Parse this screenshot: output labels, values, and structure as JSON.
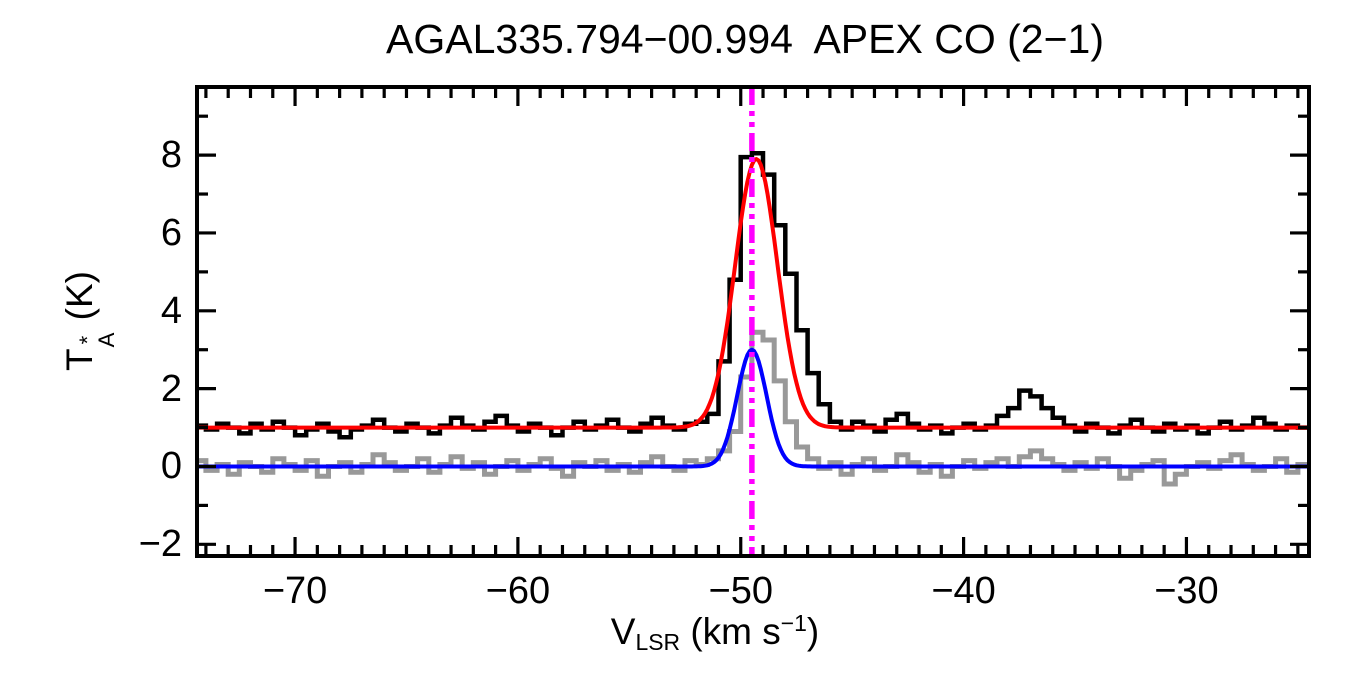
{
  "chart_data": {
    "type": "line",
    "title": "AGAL335.794−00.994  APEX CO (2−1)",
    "xlabel_parts": {
      "prefix": "V",
      "sub": "LSR",
      "mid": " (km s",
      "sup": "−1",
      "suffix": ")"
    },
    "ylabel_parts": {
      "prefix": "T",
      "sup": "*",
      "sub": "A",
      "suffix": " (K)"
    },
    "xlim": [
      -74.4,
      -24.5
    ],
    "ylim": [
      -2.3,
      9.75
    ],
    "x_major_ticks": [
      -70,
      -60,
      -50,
      -40,
      -30
    ],
    "x_tick_labels": [
      "−70",
      "−60",
      "−50",
      "−40",
      "−30"
    ],
    "x_minor_step": 1,
    "y_major_ticks": [
      -2,
      0,
      2,
      4,
      6,
      8
    ],
    "y_tick_labels": [
      "−2",
      "0",
      "2",
      "4",
      "6",
      "8"
    ],
    "y_minor_step": 1,
    "grid": false,
    "legend": "none",
    "marker_line": {
      "x": -49.5,
      "color": "#ff00ff",
      "style": "dash-dot-dot"
    },
    "colors": {
      "spectrum_offset": "#000000",
      "spectrum": "#999999",
      "fit_offset": "#ff0000",
      "fit": "#0000ff",
      "marker": "#ff00ff",
      "frame": "#000000",
      "background": "#ffffff"
    },
    "spectra": [
      {
        "name": "co21-spectrum-offset",
        "color": "#000000",
        "baseline_offset": 1.0,
        "x_start": -74.25,
        "dx": 0.5,
        "values": [
          1.05,
          0.95,
          1.1,
          1.0,
          0.85,
          1.1,
          0.95,
          1.15,
          1.0,
          0.8,
          0.95,
          1.1,
          0.9,
          0.75,
          0.95,
          1.05,
          1.2,
          1.0,
          0.9,
          1.1,
          1.0,
          0.85,
          1.05,
          1.25,
          1.05,
          0.95,
          1.15,
          1.3,
          1.05,
          0.9,
          1.1,
          1.0,
          0.8,
          1.0,
          1.15,
          0.95,
          1.05,
          1.2,
          1.0,
          0.9,
          1.1,
          1.25,
          1.05,
          0.95,
          1.1,
          1.15,
          1.35,
          2.7,
          4.8,
          7.95,
          8.05,
          7.5,
          6.2,
          4.95,
          3.5,
          2.4,
          1.6,
          1.15,
          0.95,
          1.15,
          1.05,
          0.9,
          1.2,
          1.35,
          1.1,
          0.95,
          1.05,
          0.85,
          1.0,
          1.1,
          0.95,
          1.05,
          1.3,
          1.5,
          1.95,
          1.8,
          1.5,
          1.25,
          1.05,
          0.9,
          1.1,
          1.0,
          0.85,
          1.05,
          1.2,
          1.0,
          0.9,
          1.1,
          0.95,
          1.05,
          0.85,
          1.0,
          1.15,
          0.95,
          1.05,
          1.25,
          1.1,
          0.95,
          1.05,
          1.0
        ]
      },
      {
        "name": "co21-spectrum",
        "color": "#999999",
        "baseline_offset": 0.0,
        "x_start": -74.25,
        "dx": 0.5,
        "values": [
          0.15,
          -0.1,
          0.05,
          -0.2,
          0.1,
          0.0,
          -0.15,
          0.2,
          0.05,
          -0.1,
          0.15,
          -0.25,
          0.0,
          0.1,
          -0.15,
          0.05,
          0.3,
          0.1,
          -0.1,
          0.0,
          0.2,
          -0.15,
          0.05,
          0.25,
          -0.05,
          0.1,
          -0.2,
          0.0,
          0.15,
          -0.1,
          0.05,
          0.2,
          -0.05,
          -0.25,
          0.1,
          0.0,
          0.15,
          -0.1,
          0.05,
          -0.15,
          0.1,
          0.25,
          0.0,
          -0.1,
          0.15,
          0.05,
          0.2,
          0.4,
          0.9,
          2.3,
          3.45,
          3.25,
          2.2,
          1.15,
          0.5,
          0.2,
          -0.05,
          0.1,
          -0.2,
          0.05,
          0.2,
          -0.1,
          0.0,
          0.3,
          0.1,
          -0.15,
          0.05,
          -0.25,
          0.0,
          0.15,
          -0.05,
          0.1,
          0.2,
          0.0,
          0.25,
          0.4,
          0.2,
          0.05,
          -0.1,
          0.1,
          -0.05,
          0.2,
          0.0,
          -0.3,
          -0.1,
          0.05,
          0.15,
          -0.45,
          -0.2,
          0.0,
          0.1,
          -0.05,
          0.15,
          0.3,
          0.05,
          -0.1,
          0.0,
          0.2,
          -0.15,
          0.05
        ]
      }
    ],
    "fits": [
      {
        "name": "gaussian-fit-offset",
        "color": "#ff0000",
        "baseline": 1.0,
        "amplitude": 6.9,
        "center": -49.3,
        "sigma": 0.95,
        "peak": 7.9
      },
      {
        "name": "gaussian-fit",
        "color": "#0000ff",
        "baseline": 0.0,
        "amplitude": 3.0,
        "center": -49.5,
        "sigma": 0.66,
        "peak": 3.0
      }
    ]
  }
}
